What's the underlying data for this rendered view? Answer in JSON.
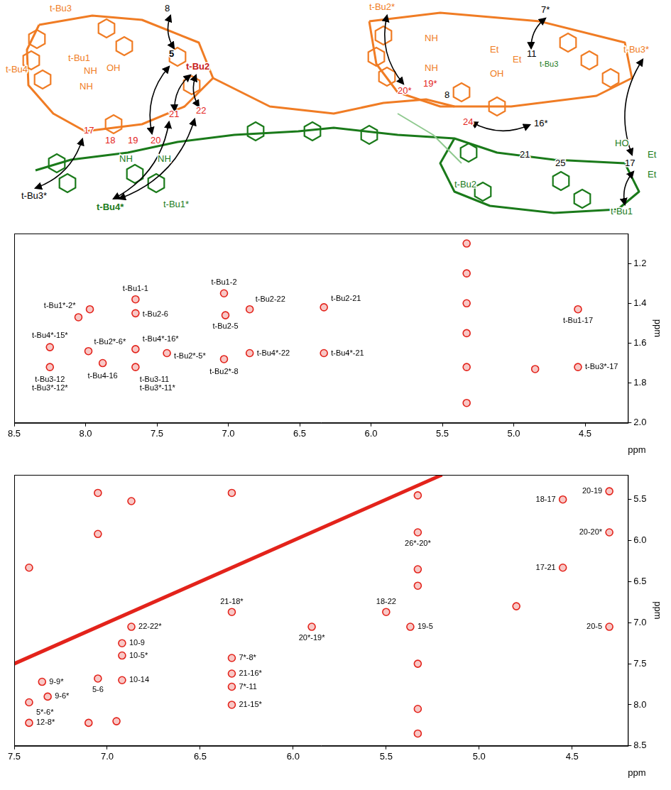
{
  "diagram": {
    "labels": [
      {
        "text": "t-Bu3",
        "color": "#f07c24"
      },
      {
        "text": "t-Bu4",
        "color": "#f07c24"
      },
      {
        "text": "t-Bu1",
        "color": "#f07c24"
      },
      {
        "text": "NH",
        "color": "#f07c24"
      },
      {
        "text": "OH",
        "color": "#f07c24"
      },
      {
        "text": "NH",
        "color": "#f07c24"
      },
      {
        "text": "8",
        "color": "#000000"
      },
      {
        "text": "5",
        "color": "#000000"
      },
      {
        "text": "t-Bu2",
        "color": "#c8201c"
      },
      {
        "text": "17",
        "color": "#e3231b"
      },
      {
        "text": "18",
        "color": "#e3231b"
      },
      {
        "text": "19",
        "color": "#e3231b"
      },
      {
        "text": "20",
        "color": "#e3231b"
      },
      {
        "text": "21",
        "color": "#e3231b"
      },
      {
        "text": "22",
        "color": "#e3231b"
      },
      {
        "text": "t-Bu3*",
        "color": "#000000"
      },
      {
        "text": "t-Bu4*",
        "color": "#1a7a1a"
      },
      {
        "text": "t-Bu1*",
        "color": "#1a7a1a"
      },
      {
        "text": "NH",
        "color": "#1a7a1a"
      },
      {
        "text": "NH",
        "color": "#1a7a1a"
      },
      {
        "text": "t-Bu2*",
        "color": "#f07c24"
      },
      {
        "text": "7*",
        "color": "#000000"
      },
      {
        "text": "11",
        "color": "#000000"
      },
      {
        "text": "t-Bu3",
        "color": "#1a7a1a"
      },
      {
        "text": "Et",
        "color": "#f07c24"
      },
      {
        "text": "Et",
        "color": "#f07c24"
      },
      {
        "text": "OH",
        "color": "#f07c24"
      },
      {
        "text": "NH",
        "color": "#f07c24"
      },
      {
        "text": "NH",
        "color": "#f07c24"
      },
      {
        "text": "20*",
        "color": "#e3231b"
      },
      {
        "text": "19*",
        "color": "#e3231b"
      },
      {
        "text": "8",
        "color": "#000000"
      },
      {
        "text": "24",
        "color": "#e3231b"
      },
      {
        "text": "16*",
        "color": "#000000"
      },
      {
        "text": "t-Bu3*",
        "color": "#f07c24"
      },
      {
        "text": "21",
        "color": "#000000"
      },
      {
        "text": "25",
        "color": "#000000"
      },
      {
        "text": "17",
        "color": "#000000"
      },
      {
        "text": "t-Bu2",
        "color": "#1a7a1a"
      },
      {
        "text": "t-Bu1",
        "color": "#1a7a1a"
      },
      {
        "text": "HO",
        "color": "#1a7a1a"
      },
      {
        "text": "Et",
        "color": "#1a7a1a"
      },
      {
        "text": "Et",
        "color": "#1a7a1a"
      }
    ]
  },
  "chart_data": [
    {
      "type": "scatter",
      "x_label": "ppm",
      "y_label": "ppm",
      "xlim": [
        8.5,
        4.2
      ],
      "ylim": [
        2.0,
        1.05
      ],
      "xticks": [
        8.5,
        {
          "value": 8,
          "label": "8.0"
        },
        7.5,
        {
          "value": 7,
          "label": "7.0"
        },
        6.5,
        {
          "value": 6,
          "label": "6.0"
        },
        5.5,
        {
          "value": 5,
          "label": "5.0"
        },
        4.5
      ],
      "yticks": [
        1.2,
        1.4,
        1.6,
        1.8,
        {
          "value": 2,
          "label": "2.0"
        }
      ],
      "grid": false,
      "color": "#e3231b",
      "peaks": [
        {
          "x": 8.05,
          "y": 1.47,
          "labels": [
            "t-Bu1*-2*"
          ]
        },
        {
          "x": 7.65,
          "y": 1.38,
          "labels": [
            "t-Bu1-1"
          ]
        },
        {
          "x": 7.65,
          "y": 1.45,
          "labels": [
            "t-Bu2-6"
          ]
        },
        {
          "x": 7.03,
          "y": 1.35,
          "labels": [
            "t-Bu1-2"
          ]
        },
        {
          "x": 7.02,
          "y": 1.46,
          "labels": [
            "t-Bu2-5"
          ]
        },
        {
          "x": 6.85,
          "y": 1.43,
          "labels": [
            "t-Bu2-22"
          ]
        },
        {
          "x": 6.33,
          "y": 1.42,
          "labels": [
            "t-Bu2-21"
          ]
        },
        {
          "x": 4.55,
          "y": 1.43,
          "labels": [
            "t-Bu1-17"
          ]
        },
        {
          "x": 8.25,
          "y": 1.62,
          "labels": [
            "t-Bu4*-15*"
          ]
        },
        {
          "x": 7.98,
          "y": 1.64,
          "labels": [
            "t-Bu2*-6*"
          ]
        },
        {
          "x": 7.88,
          "y": 1.7,
          "labels": [
            "t-Bu4-16"
          ]
        },
        {
          "x": 8.25,
          "y": 1.72,
          "labels": [
            "t-Bu3-12",
            "t-Bu3*-12*"
          ]
        },
        {
          "x": 7.65,
          "y": 1.63,
          "labels": [
            "t-Bu4*-16*"
          ]
        },
        {
          "x": 7.65,
          "y": 1.72,
          "labels": [
            "t-Bu3-11",
            "t-Bu3*-11*"
          ]
        },
        {
          "x": 7.43,
          "y": 1.65,
          "labels": [
            "t-Bu2*-5*"
          ]
        },
        {
          "x": 7.03,
          "y": 1.68,
          "labels": [
            "t-Bu2*-8"
          ]
        },
        {
          "x": 6.85,
          "y": 1.65,
          "labels": [
            "t-Bu4*-22"
          ]
        },
        {
          "x": 6.33,
          "y": 1.65,
          "labels": [
            "t-Bu4*-21"
          ]
        },
        {
          "x": 4.55,
          "y": 1.72,
          "labels": [
            "t-Bu3*-17"
          ]
        },
        {
          "x": 7.97,
          "y": 1.43,
          "labels": []
        },
        {
          "x": 4.85,
          "y": 1.73,
          "labels": []
        },
        {
          "x": 5.33,
          "y": 1.1,
          "labels": []
        },
        {
          "x": 5.33,
          "y": 1.25,
          "labels": []
        },
        {
          "x": 5.33,
          "y": 1.4,
          "labels": []
        },
        {
          "x": 5.33,
          "y": 1.55,
          "labels": []
        },
        {
          "x": 5.33,
          "y": 1.72,
          "labels": []
        },
        {
          "x": 5.33,
          "y": 1.9,
          "labels": []
        }
      ]
    },
    {
      "type": "scatter",
      "x_label": "ppm",
      "y_label": "ppm",
      "xlim": [
        7.5,
        4.2
      ],
      "ylim": [
        8.5,
        5.2
      ],
      "xticks": [
        7.5,
        {
          "value": 7,
          "label": "7.0"
        },
        6.5,
        {
          "value": 6,
          "label": "6.0"
        },
        5.5,
        {
          "value": 5,
          "label": "5.0"
        },
        4.5
      ],
      "yticks": [
        5.5,
        {
          "value": 6,
          "label": "6.0"
        },
        6.5,
        {
          "value": 7,
          "label": "7.0"
        },
        7.5,
        {
          "value": 8,
          "label": "8.0"
        },
        8.5
      ],
      "grid": false,
      "color": "#e3231b",
      "diagonal": [
        [
          7.5,
          7.5
        ],
        [
          5.2,
          5.2
        ]
      ],
      "peaks": [
        {
          "x": 4.3,
          "y": 5.4,
          "labels": [
            "20-19"
          ]
        },
        {
          "x": 4.55,
          "y": 5.5,
          "labels": [
            "18-17"
          ]
        },
        {
          "x": 4.3,
          "y": 5.9,
          "labels": [
            "20-20*"
          ]
        },
        {
          "x": 4.55,
          "y": 6.33,
          "labels": [
            "17-21"
          ]
        },
        {
          "x": 4.3,
          "y": 7.05,
          "labels": [
            "20-5"
          ]
        },
        {
          "x": 5.33,
          "y": 5.9,
          "labels": [
            "26*-20*"
          ]
        },
        {
          "x": 5.5,
          "y": 6.87,
          "labels": [
            "18-22"
          ]
        },
        {
          "x": 5.37,
          "y": 7.05,
          "labels": [
            "19-5"
          ]
        },
        {
          "x": 5.9,
          "y": 7.05,
          "labels": [
            "20*-19*"
          ]
        },
        {
          "x": 6.33,
          "y": 6.87,
          "labels": [
            "21-18*"
          ]
        },
        {
          "x": 6.33,
          "y": 7.43,
          "labels": [
            "7*-8*"
          ]
        },
        {
          "x": 6.33,
          "y": 7.62,
          "labels": [
            "21-16*"
          ]
        },
        {
          "x": 6.33,
          "y": 7.78,
          "labels": [
            "7*-11"
          ]
        },
        {
          "x": 6.33,
          "y": 8.0,
          "labels": [
            "21-15*"
          ]
        },
        {
          "x": 6.87,
          "y": 7.05,
          "labels": [
            "22-22*"
          ]
        },
        {
          "x": 6.92,
          "y": 7.25,
          "labels": [
            "10-9"
          ]
        },
        {
          "x": 6.92,
          "y": 7.4,
          "labels": [
            "10-5*"
          ]
        },
        {
          "x": 6.92,
          "y": 7.7,
          "labels": [
            "10-14"
          ]
        },
        {
          "x": 7.05,
          "y": 7.68,
          "labels": [
            "5-6"
          ]
        },
        {
          "x": 7.35,
          "y": 7.72,
          "labels": [
            "9-9*"
          ]
        },
        {
          "x": 7.32,
          "y": 7.9,
          "labels": [
            "9-6*"
          ]
        },
        {
          "x": 7.42,
          "y": 7.97,
          "labels": [
            "5*-6*"
          ]
        },
        {
          "x": 7.42,
          "y": 8.22,
          "labels": [
            "12-8*"
          ]
        },
        {
          "x": 7.05,
          "y": 5.42,
          "labels": []
        },
        {
          "x": 6.87,
          "y": 5.52,
          "labels": []
        },
        {
          "x": 7.05,
          "y": 5.92,
          "labels": []
        },
        {
          "x": 7.42,
          "y": 6.33,
          "labels": []
        },
        {
          "x": 6.33,
          "y": 5.42,
          "labels": []
        },
        {
          "x": 7.1,
          "y": 8.22,
          "labels": []
        },
        {
          "x": 6.95,
          "y": 8.2,
          "labels": []
        },
        {
          "x": 5.33,
          "y": 5.45,
          "labels": []
        },
        {
          "x": 5.33,
          "y": 6.35,
          "labels": []
        },
        {
          "x": 5.33,
          "y": 6.55,
          "labels": []
        },
        {
          "x": 5.33,
          "y": 7.5,
          "labels": []
        },
        {
          "x": 5.33,
          "y": 8.05,
          "labels": []
        },
        {
          "x": 5.33,
          "y": 8.35,
          "labels": []
        },
        {
          "x": 4.8,
          "y": 6.8,
          "labels": []
        }
      ]
    }
  ]
}
